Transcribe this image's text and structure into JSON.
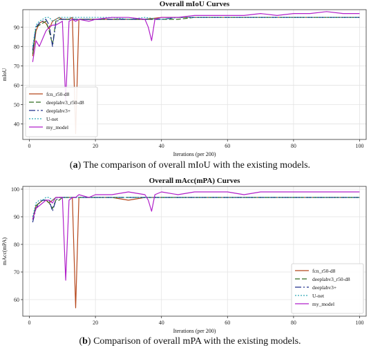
{
  "chart_data": [
    {
      "type": "line",
      "title": "Overall mIoU Curves",
      "xlabel": "Iterations (per 200)",
      "ylabel": "mIoU",
      "xlim": [
        -2,
        102
      ],
      "ylim": [
        32,
        99
      ],
      "xticks": [
        0,
        20,
        40,
        60,
        80,
        100
      ],
      "yticks": [
        40,
        50,
        60,
        70,
        80,
        90
      ],
      "grid": true,
      "legend_position": "lower-left",
      "series": [
        {
          "name": "fcn_r50-d8",
          "color": "#b5461a",
          "dash": "",
          "x": [
            1,
            2,
            3,
            4,
            5,
            6,
            7,
            8,
            9,
            10,
            11,
            12,
            13,
            14,
            15,
            20,
            25,
            30,
            35,
            40,
            45,
            50,
            55,
            60,
            65,
            70,
            75,
            80,
            85,
            90,
            95,
            100
          ],
          "y": [
            75,
            88,
            92,
            93,
            92,
            89,
            93,
            94,
            95,
            94,
            94,
            94,
            95,
            35,
            94,
            94,
            94,
            94,
            94,
            95,
            95,
            95,
            95,
            95,
            95,
            95,
            95,
            95,
            95,
            95,
            95,
            95
          ]
        },
        {
          "name": "deeplabv3_r50-d8",
          "color": "#2e6b1e",
          "dash": "7,3",
          "x": [
            1,
            2,
            3,
            4,
            5,
            6,
            7,
            8,
            9,
            10,
            15,
            20,
            25,
            30,
            35,
            40,
            45,
            50,
            55,
            60,
            65,
            70,
            75,
            80,
            85,
            90,
            95,
            100
          ],
          "y": [
            76,
            90,
            91,
            92,
            93,
            88,
            81,
            93,
            94,
            94,
            94,
            94,
            94,
            94,
            94,
            94,
            94,
            95,
            95,
            95,
            95,
            95,
            95,
            95,
            95,
            95,
            95,
            95
          ]
        },
        {
          "name": "deeplabv3+",
          "color": "#1f2e8a",
          "dash": "9,3,2,3",
          "x": [
            1,
            2,
            3,
            4,
            5,
            6,
            7,
            8,
            9,
            10,
            15,
            20,
            25,
            30,
            35,
            40,
            45,
            50,
            55,
            60,
            65,
            70,
            75,
            80,
            85,
            90,
            95,
            100
          ],
          "y": [
            78,
            90,
            92,
            93,
            94,
            91,
            80,
            92,
            94,
            94,
            94,
            94,
            94,
            94,
            94,
            94,
            95,
            95,
            95,
            95,
            95,
            95,
            95,
            95,
            95,
            95,
            95,
            95
          ]
        },
        {
          "name": "U-net",
          "color": "#2aa6b5",
          "dash": "2,2",
          "x": [
            1,
            2,
            3,
            4,
            5,
            6,
            7,
            8,
            9,
            10,
            15,
            20,
            25,
            30,
            35,
            40,
            45,
            50,
            55,
            60,
            65,
            70,
            75,
            80,
            85,
            90,
            95,
            100
          ],
          "y": [
            80,
            91,
            93,
            94,
            95,
            95,
            93,
            94,
            95,
            95,
            95,
            95,
            95,
            94,
            95,
            94,
            95,
            95,
            95,
            95,
            95,
            95,
            95,
            95,
            95,
            95,
            95,
            95
          ]
        },
        {
          "name": "my_model",
          "color": "#b01ec9",
          "dash": "",
          "x": [
            1,
            2,
            3,
            4,
            5,
            6,
            7,
            8,
            9,
            10,
            11,
            12,
            13,
            14,
            15,
            18,
            20,
            25,
            30,
            35,
            36,
            37,
            38,
            40,
            45,
            50,
            55,
            60,
            65,
            70,
            75,
            80,
            85,
            90,
            95,
            100
          ],
          "y": [
            72,
            83,
            80,
            84,
            88,
            90,
            91,
            91,
            92,
            93,
            52,
            93,
            94,
            93,
            94,
            93,
            94,
            95,
            95,
            94,
            90,
            83,
            94,
            95,
            95,
            96,
            96,
            96,
            96,
            97,
            96,
            97,
            97,
            98,
            97,
            97
          ]
        }
      ]
    },
    {
      "type": "line",
      "title": "Overall mAcc(mPA) Curves",
      "xlabel": "Iterations (per 200)",
      "ylabel": "mAcc(mPA)",
      "xlim": [
        -2,
        102
      ],
      "ylim": [
        54,
        101
      ],
      "xticks": [
        0,
        20,
        40,
        60,
        80,
        100
      ],
      "yticks": [
        60,
        70,
        80,
        90,
        100
      ],
      "grid": true,
      "legend_position": "lower-right",
      "series": [
        {
          "name": "fcn_r50-d8",
          "color": "#b5461a",
          "dash": "",
          "x": [
            1,
            2,
            3,
            4,
            5,
            6,
            7,
            8,
            9,
            10,
            11,
            12,
            13,
            14,
            15,
            20,
            25,
            30,
            35,
            40,
            45,
            50,
            55,
            60,
            65,
            70,
            75,
            80,
            85,
            90,
            95,
            100
          ],
          "y": [
            89,
            94,
            95,
            96,
            96,
            95,
            96,
            97,
            97,
            97,
            97,
            97,
            97,
            57,
            97,
            97,
            97,
            96,
            97,
            97,
            97,
            97,
            97,
            97,
            97,
            97,
            97,
            97,
            97,
            97,
            97,
            97
          ]
        },
        {
          "name": "deeplabv3_r50-d8",
          "color": "#2e6b1e",
          "dash": "7,3",
          "x": [
            1,
            2,
            3,
            4,
            5,
            6,
            7,
            8,
            9,
            10,
            15,
            20,
            25,
            30,
            35,
            40,
            45,
            50,
            55,
            60,
            65,
            70,
            75,
            80,
            85,
            90,
            95,
            100
          ],
          "y": [
            89,
            94,
            95,
            96,
            96,
            95,
            93,
            96,
            96,
            97,
            97,
            97,
            97,
            97,
            97,
            97,
            97,
            97,
            97,
            97,
            97,
            97,
            97,
            97,
            97,
            97,
            97,
            97
          ]
        },
        {
          "name": "deeplabv3+",
          "color": "#1f2e8a",
          "dash": "9,3,2,3",
          "x": [
            1,
            2,
            3,
            4,
            5,
            6,
            7,
            8,
            9,
            10,
            15,
            20,
            25,
            30,
            35,
            40,
            45,
            50,
            55,
            60,
            65,
            70,
            75,
            80,
            85,
            90,
            95,
            100
          ],
          "y": [
            88,
            93,
            95,
            96,
            96,
            96,
            92,
            96,
            97,
            97,
            97,
            97,
            97,
            97,
            97,
            97,
            97,
            97,
            97,
            97,
            97,
            97,
            97,
            97,
            97,
            97,
            97,
            97
          ]
        },
        {
          "name": "U-net",
          "color": "#2aa6b5",
          "dash": "2,2",
          "x": [
            1,
            2,
            3,
            4,
            5,
            6,
            7,
            8,
            9,
            10,
            15,
            20,
            25,
            30,
            35,
            40,
            45,
            50,
            55,
            60,
            65,
            70,
            75,
            80,
            85,
            90,
            95,
            100
          ],
          "y": [
            90,
            95,
            96,
            96,
            97,
            97,
            96,
            97,
            97,
            97,
            97,
            97,
            97,
            97,
            97,
            97,
            97,
            97,
            97,
            97,
            97,
            97,
            97,
            97,
            97,
            97,
            97,
            97
          ]
        },
        {
          "name": "my_model",
          "color": "#b01ec9",
          "dash": "",
          "x": [
            1,
            2,
            3,
            4,
            5,
            6,
            7,
            8,
            9,
            10,
            11,
            12,
            13,
            14,
            15,
            18,
            20,
            25,
            30,
            35,
            36,
            37,
            38,
            40,
            45,
            50,
            55,
            60,
            65,
            70,
            75,
            80,
            85,
            90,
            95,
            100
          ],
          "y": [
            89,
            93,
            94,
            95,
            96,
            96,
            95,
            97,
            97,
            97,
            67,
            96,
            97,
            97,
            98,
            97,
            98,
            98,
            99,
            98,
            96,
            92,
            98,
            99,
            98,
            99,
            99,
            99,
            98,
            99,
            99,
            99,
            99,
            99,
            99,
            99
          ]
        }
      ]
    }
  ],
  "captions": [
    {
      "label": "a",
      "text": "The comparison of overall mIoU with the existing models."
    },
    {
      "label": "b",
      "text": "Comparison of overall mPA with the existing models."
    }
  ]
}
